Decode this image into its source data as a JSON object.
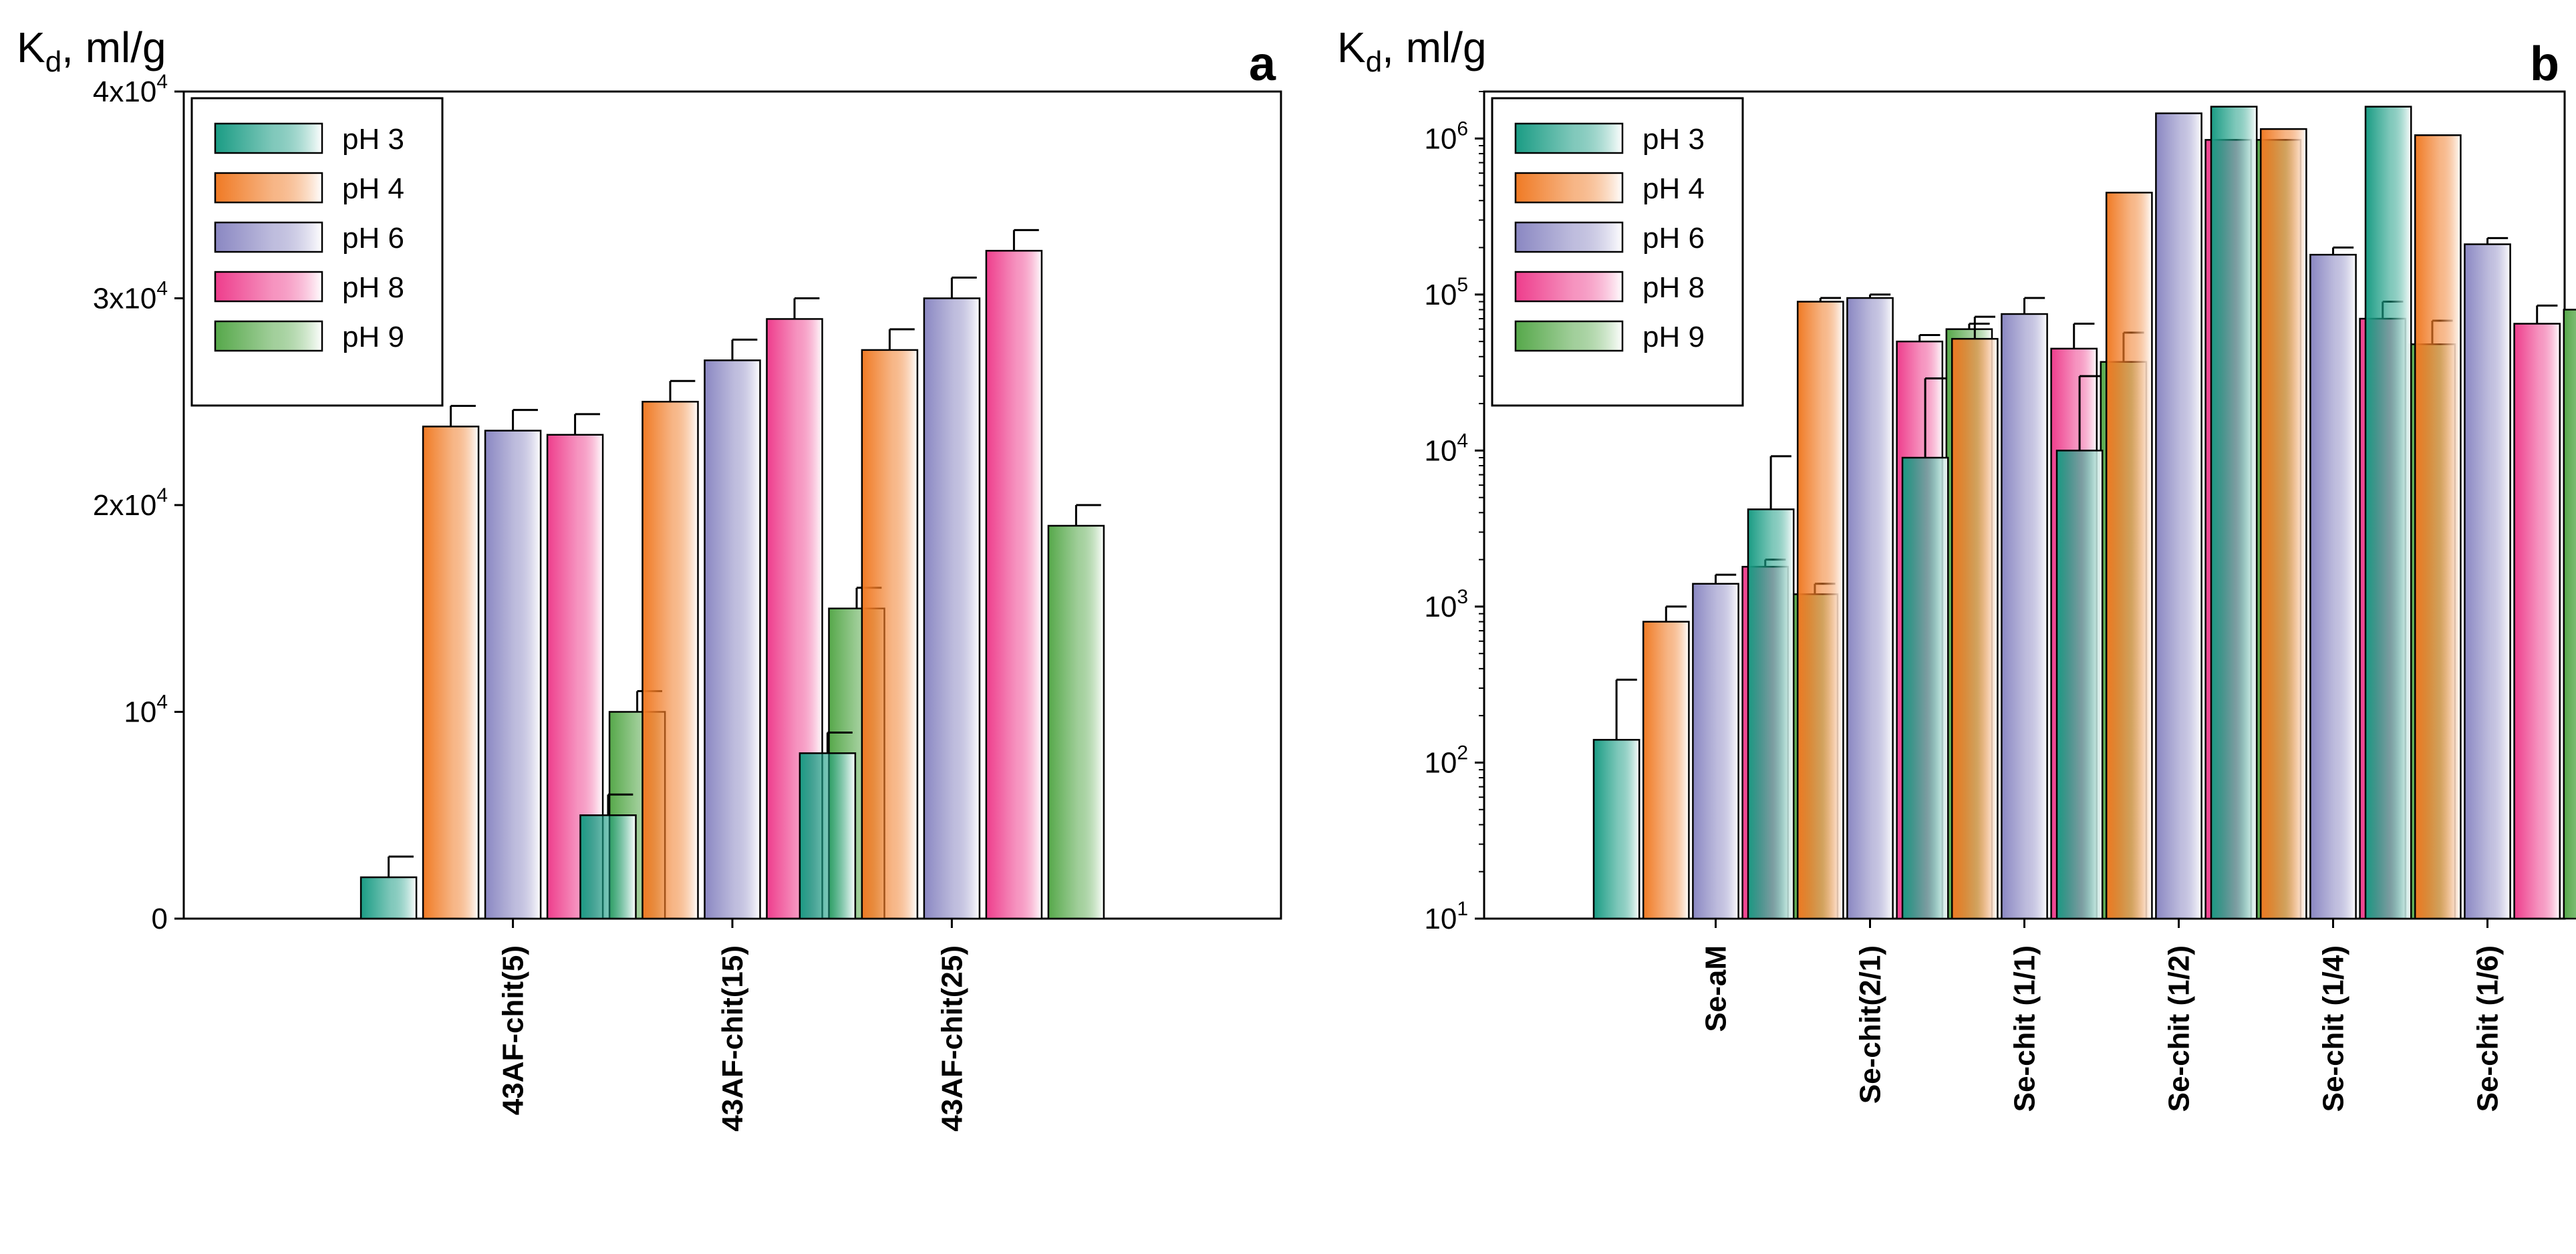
{
  "colors": {
    "pH 3": "#1a9c84",
    "pH 4": "#f07a24",
    "pH 6": "#8a87c2",
    "pH 8": "#ee3d8c",
    "pH 9": "#56a84a"
  },
  "chart_data": [
    {
      "type": "bar",
      "panel": "a",
      "ylabel": {
        "main": "K",
        "sub": "d",
        "rest": ", ml/g"
      },
      "yscale": "linear",
      "ylim": [
        0,
        40000
      ],
      "yticks": [
        {
          "value": 0,
          "label": "0",
          "sup": ""
        },
        {
          "value": 10000,
          "label": "10",
          "sup": "4"
        },
        {
          "value": 20000,
          "label": "2x10",
          "sup": "4"
        },
        {
          "value": 30000,
          "label": "3x10",
          "sup": "4"
        },
        {
          "value": 40000,
          "label": "4x10",
          "sup": "4"
        }
      ],
      "categories": [
        "43AF-chit(5)",
        "43AF-chit(15)",
        "43AF-chit(25)"
      ],
      "category_slots": 5,
      "category_offset": 1,
      "series": [
        {
          "name": "pH 3",
          "values": [
            2000,
            5000,
            8000
          ],
          "errors": [
            1000,
            1000,
            1000
          ]
        },
        {
          "name": "pH 4",
          "values": [
            23800,
            25000,
            27500
          ],
          "errors": [
            1000,
            1000,
            1000
          ]
        },
        {
          "name": "pH 6",
          "values": [
            23600,
            27000,
            30000
          ],
          "errors": [
            1000,
            1000,
            1000
          ]
        },
        {
          "name": "pH 8",
          "values": [
            23400,
            29000,
            32300
          ],
          "errors": [
            1000,
            1000,
            1000
          ]
        },
        {
          "name": "pH 9",
          "values": [
            10000,
            15000,
            19000
          ],
          "errors": [
            1000,
            1000,
            1000
          ]
        }
      ],
      "legend": "top-left"
    },
    {
      "type": "bar",
      "panel": "b",
      "ylabel": {
        "main": "K",
        "sub": "d",
        "rest": ", ml/g"
      },
      "yscale": "log",
      "ylim": [
        10,
        2000000
      ],
      "yticks": [
        {
          "value": 10,
          "label": "10",
          "sup": "1"
        },
        {
          "value": 100,
          "label": "10",
          "sup": "2"
        },
        {
          "value": 1000,
          "label": "10",
          "sup": "3"
        },
        {
          "value": 10000,
          "label": "10",
          "sup": "4"
        },
        {
          "value": 100000,
          "label": "10",
          "sup": "5"
        },
        {
          "value": 1000000,
          "label": "10",
          "sup": "6"
        }
      ],
      "categories": [
        "Se-aM",
        "Se-chit(2/1)",
        "Se-chit (1/1)",
        "Se-chit (1/2)",
        "Se-chit (1/4)",
        "Se-chit (1/6)"
      ],
      "category_slots": 7,
      "category_offset": 1,
      "series": [
        {
          "name": "pH 3",
          "values": [
            140,
            4200,
            9000,
            10000,
            1600000,
            1600000
          ],
          "errors": [
            200,
            5000,
            20000,
            20000,
            0,
            0
          ]
        },
        {
          "name": "pH 4",
          "values": [
            800,
            90000,
            52000,
            450000,
            1150000,
            1050000
          ],
          "errors": [
            200,
            5000,
            20000,
            0,
            0,
            0
          ]
        },
        {
          "name": "pH 6",
          "values": [
            1400,
            95000,
            75000,
            1450000,
            180000,
            210000
          ],
          "errors": [
            200,
            5000,
            20000,
            0,
            20000,
            20000
          ]
        },
        {
          "name": "pH 8",
          "values": [
            1800,
            50000,
            45000,
            980000,
            70000,
            65000
          ],
          "errors": [
            200,
            5000,
            20000,
            0,
            20000,
            20000
          ]
        },
        {
          "name": "pH 9",
          "values": [
            1200,
            60000,
            37000,
            980000,
            48000,
            80000
          ],
          "errors": [
            200,
            5000,
            20000,
            0,
            20000,
            20000
          ]
        }
      ],
      "legend": "top-left"
    }
  ]
}
